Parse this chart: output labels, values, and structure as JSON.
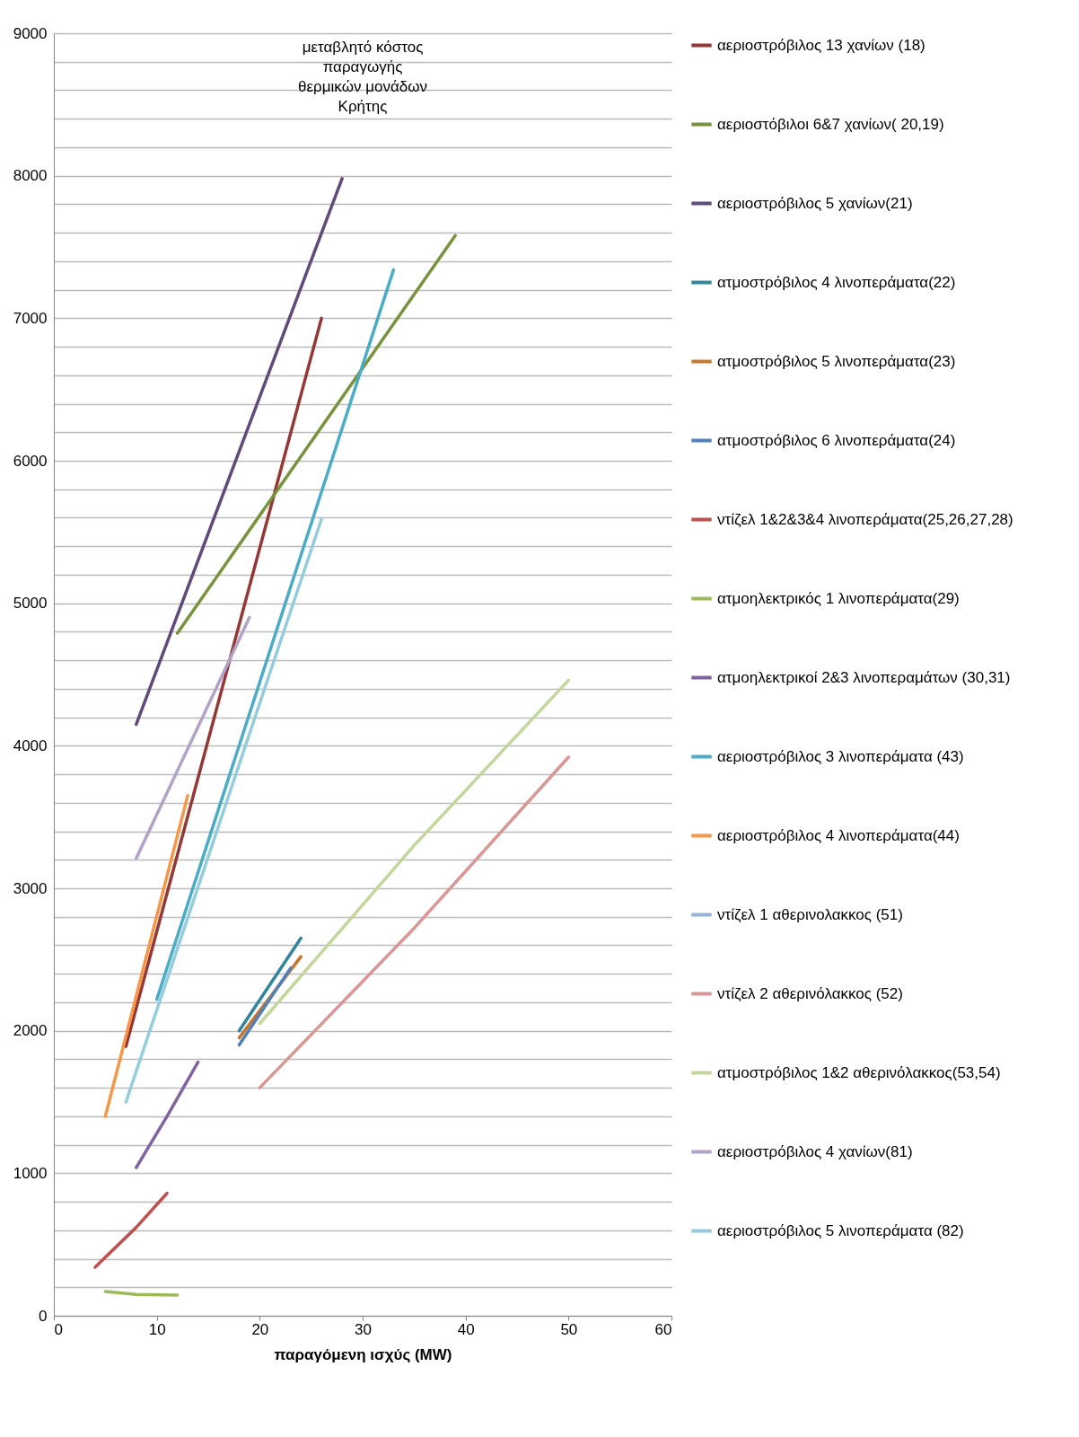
{
  "chart_data": {
    "type": "line",
    "title": "μεταβλητό κόστος παραγωγής θερμικών μονάδων Κρήτης",
    "xlabel": "παραγόμενη ισχύς (MW)",
    "xlim": [
      0,
      60
    ],
    "xticks": [
      0,
      10,
      20,
      30,
      40,
      50,
      60
    ],
    "ylim": [
      0,
      9000
    ],
    "yticks": [
      0,
      {
        "value": 200,
        "label": null
      },
      {
        "value": 400,
        "label": null
      },
      {
        "value": 600,
        "label": null
      },
      {
        "value": 800,
        "label": null
      },
      1000,
      {
        "value": 1200,
        "label": null
      },
      {
        "value": 1400,
        "label": null
      },
      {
        "value": 1600,
        "label": null
      },
      {
        "value": 1800,
        "label": null
      },
      2000,
      {
        "value": 2200,
        "label": null
      },
      {
        "value": 2400,
        "label": null
      },
      {
        "value": 2600,
        "label": null
      },
      {
        "value": 2800,
        "label": null
      },
      3000,
      {
        "value": 3200,
        "label": null
      },
      {
        "value": 3400,
        "label": null
      },
      {
        "value": 3600,
        "label": null
      },
      {
        "value": 3800,
        "label": null
      },
      4000,
      {
        "value": 4200,
        "label": null
      },
      {
        "value": 4400,
        "label": null
      },
      {
        "value": 4600,
        "label": null
      },
      {
        "value": 4800,
        "label": null
      },
      5000,
      {
        "value": 5200,
        "label": null
      },
      {
        "value": 5400,
        "label": null
      },
      {
        "value": 5600,
        "label": null
      },
      {
        "value": 5800,
        "label": null
      },
      6000,
      {
        "value": 6200,
        "label": null
      },
      {
        "value": 6400,
        "label": null
      },
      {
        "value": 6600,
        "label": null
      },
      {
        "value": 6800,
        "label": null
      },
      7000,
      {
        "value": 7200,
        "label": null
      },
      {
        "value": 7400,
        "label": null
      },
      {
        "value": 7600,
        "label": null
      },
      {
        "value": 7800,
        "label": null
      },
      8000,
      {
        "value": 8200,
        "label": null
      },
      {
        "value": 8400,
        "label": null
      },
      {
        "value": 8600,
        "label": null
      },
      {
        "value": 8800,
        "label": null
      },
      9000
    ],
    "grid": "y",
    "legend": "right",
    "marker": "none",
    "line_style": "solid",
    "series": [
      {
        "name": "αεριοστρόβιλος 13 χανίων (18)",
        "color": "#953735",
        "x": [
          7,
          26
        ],
        "values": [
          1890,
          7000
        ]
      },
      {
        "name": "αεριοστόβιλοι 6&7 χανίων( 20,19)",
        "color": "#77933c",
        "x": [
          12,
          39
        ],
        "values": [
          4790,
          7580
        ]
      },
      {
        "name": "αεριοστρόβιλος 5 χανίων(21)",
        "color": "#604a7b",
        "x": [
          8,
          28
        ],
        "values": [
          4150,
          7980
        ]
      },
      {
        "name": "ατμοστρόβιλος 4 λινοπεράματα(22)",
        "color": "#31859c",
        "x": [
          18,
          24
        ],
        "values": [
          2000,
          2650
        ]
      },
      {
        "name": "ατμοστρόβιλος 5 λινοπεράματα(23)",
        "color": "#c8762e",
        "x": [
          18,
          24
        ],
        "values": [
          1950,
          2520
        ]
      },
      {
        "name": "ατμοστρόβιλος 6 λινοπεράματα(24)",
        "color": "#4f81bd",
        "x": [
          18,
          23
        ],
        "values": [
          1900,
          2440
        ]
      },
      {
        "name": "ντίζελ 1&2&3&4 λινοπεράματα(25,26,27,28)",
        "color": "#c0504d",
        "x": [
          4,
          8,
          11
        ],
        "values": [
          340,
          620,
          860
        ]
      },
      {
        "name": "ατμοηλεκτρικός 1 λινοπεράματα(29)",
        "color": "#9bbb59",
        "x": [
          5,
          8,
          12
        ],
        "values": [
          170,
          150,
          145
        ]
      },
      {
        "name": "ατμοηλεκτρικοί 2&3 λινοπεραμάτων (30,31)",
        "color": "#8064a2",
        "x": [
          8,
          11,
          14
        ],
        "values": [
          1040,
          1400,
          1780
        ]
      },
      {
        "name": "αεριοστρόβιλος 3 λινοπεράματα (43)",
        "color": "#4bacc6",
        "x": [
          10,
          33
        ],
        "values": [
          2220,
          7340
        ]
      },
      {
        "name": "αεριοστρόβιλος 4 λινοπεράματα(44)",
        "color": "#f79646",
        "x": [
          5,
          13
        ],
        "values": [
          1400,
          3650
        ]
      },
      {
        "name": "ντίζελ 1 αθερινολακκος (51)",
        "color": "#95b3d7"
      },
      {
        "name": "ντίζελ 2 αθερινόλακκος (52)",
        "color": "#d99694",
        "x": [
          20,
          35,
          50
        ],
        "values": [
          1600,
          2720,
          3920
        ]
      },
      {
        "name": "ατμοστρόβιλος 1&2 αθερινόλακκος(53,54)",
        "color": "#c3d69b",
        "x": [
          20,
          35,
          50
        ],
        "values": [
          2050,
          3300,
          4460
        ]
      },
      {
        "name": "αεριοστρόβιλος 4 χανίων(81)",
        "color": "#b3a2c7",
        "x": [
          8,
          19
        ],
        "values": [
          3210,
          4900
        ]
      },
      {
        "name": "αεριοστρόβιλος 5 λινοπεράματα (82)",
        "color": "#93cddd",
        "x": [
          7,
          26
        ],
        "values": [
          1500,
          5590
        ]
      }
    ]
  }
}
